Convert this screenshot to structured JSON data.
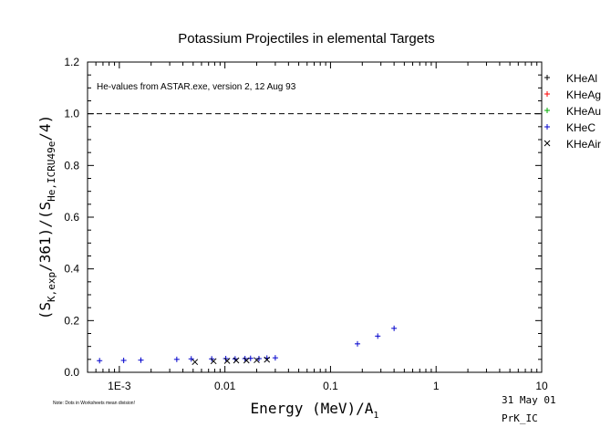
{
  "chart_data": {
    "type": "scatter",
    "title": "Potassium Projectiles in elemental Targets",
    "annotation": "He-values from ASTAR.exe, version 2, 12 Aug 93",
    "xscale": "log",
    "xlim": [
      0.0005,
      10
    ],
    "ylim": [
      0,
      1.2
    ],
    "xticks": [
      {
        "value": 0.001,
        "label": "1E-3"
      },
      {
        "value": 0.01,
        "label": "0.01"
      },
      {
        "value": 0.1,
        "label": "0.1"
      },
      {
        "value": 1,
        "label": "1"
      },
      {
        "value": 10,
        "label": "10"
      }
    ],
    "yticks": [
      {
        "value": 0,
        "label": "0.0"
      },
      {
        "value": 0.2,
        "label": "0.2"
      },
      {
        "value": 0.4,
        "label": "0.4"
      },
      {
        "value": 0.6,
        "label": "0.6"
      },
      {
        "value": 0.8,
        "label": "0.8"
      },
      {
        "value": 1.0,
        "label": "1.0"
      },
      {
        "value": 1.2,
        "label": "1.2"
      }
    ],
    "reference_line": {
      "y": 1.0,
      "style": "dashed"
    },
    "ylabel": {
      "open": "(S",
      "sub1": "K,exp",
      "mid": "/361)/(S",
      "sub2": "He,ICRU49e",
      "close": "/4)"
    },
    "xlabel": {
      "main": "Energy (MeV)/A",
      "sub": "1"
    },
    "legend_position": "right",
    "series": [
      {
        "name": "KHeAl",
        "color": "#000000",
        "marker": "plus",
        "points": []
      },
      {
        "name": "KHeAg",
        "color": "#ff0000",
        "marker": "plus",
        "points": []
      },
      {
        "name": "KHeAu",
        "color": "#00aa00",
        "marker": "plus",
        "points": []
      },
      {
        "name": "KHeC",
        "color": "#0000cc",
        "marker": "plus",
        "points": [
          [
            0.00065,
            0.045
          ],
          [
            0.0011,
            0.046
          ],
          [
            0.0016,
            0.047
          ],
          [
            0.0035,
            0.05
          ],
          [
            0.0048,
            0.052
          ],
          [
            0.0075,
            0.052
          ],
          [
            0.0102,
            0.053
          ],
          [
            0.0125,
            0.052
          ],
          [
            0.0155,
            0.053
          ],
          [
            0.0175,
            0.054
          ],
          [
            0.021,
            0.053
          ],
          [
            0.025,
            0.055
          ],
          [
            0.03,
            0.056
          ],
          [
            0.18,
            0.11
          ],
          [
            0.28,
            0.14
          ],
          [
            0.4,
            0.17
          ]
        ]
      },
      {
        "name": "KHeAir",
        "color": "#000000",
        "marker": "x",
        "points": [
          [
            0.0052,
            0.04
          ],
          [
            0.0078,
            0.043
          ],
          [
            0.0105,
            0.044
          ],
          [
            0.0128,
            0.046
          ],
          [
            0.016,
            0.046
          ],
          [
            0.02,
            0.047
          ],
          [
            0.025,
            0.049
          ]
        ]
      }
    ]
  },
  "footnote": "Note: Dots in Worksheets mean division!",
  "stamp_date": "31 May 01",
  "stamp_id": "PrK_IC"
}
